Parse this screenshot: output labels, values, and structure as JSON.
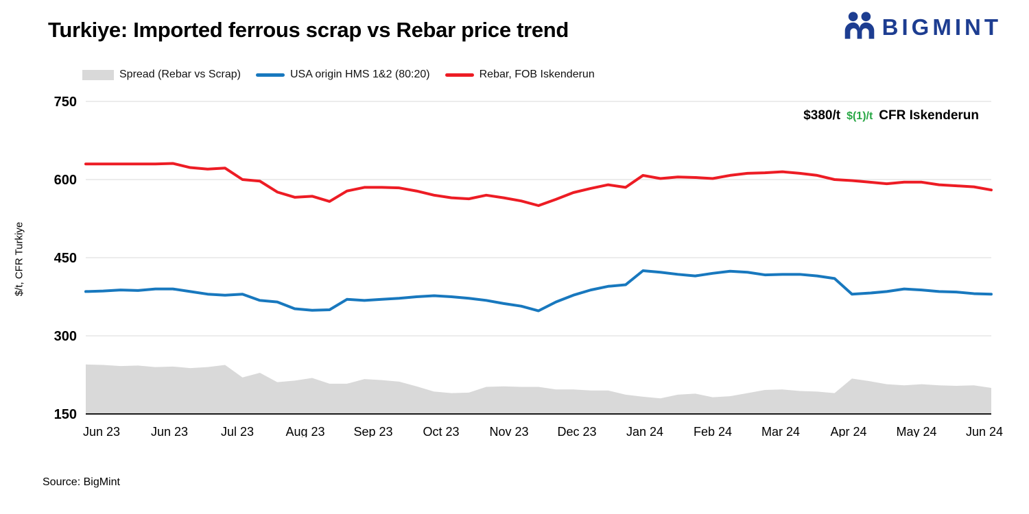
{
  "page": {
    "title": "Turkiye: Imported ferrous scrap vs Rebar price trend",
    "source": "Source: BigMint"
  },
  "logo": {
    "text": "BIGMINT",
    "color": "#1d3d91"
  },
  "legend": [
    {
      "label": "Spread (Rebar vs Scrap)",
      "type": "area",
      "color": "#d9d9d9"
    },
    {
      "label": "USA origin HMS 1&2 (80:20)",
      "type": "line",
      "color": "#1878be"
    },
    {
      "label": "Rebar, FOB Iskenderun",
      "type": "line",
      "color": "#ed1c24"
    }
  ],
  "annotation": {
    "price": "$380/t",
    "change": "$(1)/t",
    "suffix": "CFR Iskenderun",
    "change_color": "#28a745"
  },
  "chart_data": {
    "type": "line",
    "title": "Turkiye: Imported ferrous scrap vs Rebar price trend",
    "xlabel": "",
    "ylabel": "$/t, CFR Turkiye",
    "ylim": [
      150,
      750
    ],
    "yticks": [
      150,
      300,
      450,
      600,
      750
    ],
    "x_tick_labels": [
      "Jun 23",
      "Jun 23",
      "Jul 23",
      "Aug 23",
      "Sep 23",
      "Oct 23",
      "Nov 23",
      "Dec 23",
      "Jan 24",
      "Feb 24",
      "Mar 24",
      "Apr 24",
      "May 24",
      "Jun 24"
    ],
    "grid": "horizontal",
    "legend_position": "top",
    "series": [
      {
        "name": "Spread (Rebar vs Scrap)",
        "type": "area",
        "color": "#d9d9d9",
        "values": [
          245,
          244,
          242,
          243,
          240,
          241,
          238,
          240,
          244,
          220,
          229,
          211,
          214,
          219,
          208,
          208,
          217,
          215,
          212,
          203,
          193,
          190,
          191,
          202,
          203,
          202,
          202,
          197,
          197,
          195,
          195,
          187,
          183,
          180,
          187,
          189,
          182,
          184,
          190,
          196,
          197,
          194,
          193,
          190,
          218,
          213,
          207,
          205,
          207,
          205,
          204,
          205,
          200
        ]
      },
      {
        "name": "USA origin HMS 1&2 (80:20)",
        "type": "line",
        "color": "#1878be",
        "values": [
          385,
          386,
          388,
          387,
          390,
          390,
          385,
          380,
          378,
          380,
          368,
          365,
          352,
          349,
          350,
          370,
          368,
          370,
          372,
          375,
          377,
          375,
          372,
          368,
          362,
          357,
          348,
          365,
          378,
          388,
          395,
          398,
          425,
          422,
          418,
          415,
          420,
          424,
          422,
          417,
          418,
          418,
          415,
          410,
          380,
          382,
          385,
          390,
          388,
          385,
          384,
          381,
          380
        ]
      },
      {
        "name": "Rebar, FOB Iskenderun",
        "type": "line",
        "color": "#ed1c24",
        "values": [
          630,
          630,
          630,
          630,
          630,
          631,
          623,
          620,
          622,
          600,
          597,
          576,
          566,
          568,
          558,
          578,
          585,
          585,
          584,
          578,
          570,
          565,
          563,
          570,
          565,
          559,
          550,
          562,
          575,
          583,
          590,
          585,
          608,
          602,
          605,
          604,
          602,
          608,
          612,
          613,
          615,
          612,
          608,
          600,
          598,
          595,
          592,
          595,
          595,
          590,
          588,
          586,
          580
        ]
      }
    ]
  }
}
